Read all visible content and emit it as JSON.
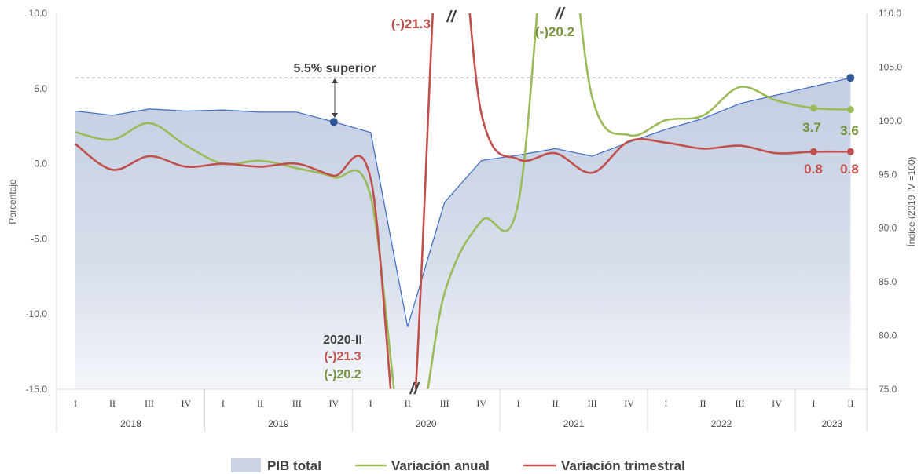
{
  "chart_data": {
    "type": "line",
    "categories": [
      "I",
      "II",
      "III",
      "IV",
      "I",
      "II",
      "III",
      "IV",
      "I",
      "II",
      "III",
      "IV",
      "I",
      "II",
      "III",
      "IV",
      "I",
      "II",
      "III",
      "IV",
      "I",
      "II"
    ],
    "years": [
      {
        "label": "2018",
        "start": 0,
        "end": 3
      },
      {
        "label": "2019",
        "start": 4,
        "end": 7
      },
      {
        "label": "2020",
        "start": 8,
        "end": 11
      },
      {
        "label": "2021",
        "start": 12,
        "end": 15
      },
      {
        "label": "2022",
        "start": 16,
        "end": 19
      },
      {
        "label": "2023",
        "start": 20,
        "end": 21
      }
    ],
    "series": [
      {
        "name": "PIB total",
        "type": "area",
        "axis": "right",
        "color": "#cdd5e4",
        "line_color": "#4472c4",
        "values": [
          100.9,
          100.5,
          101.1,
          100.9,
          101.0,
          100.8,
          100.8,
          99.9,
          98.9,
          80.8,
          92.4,
          96.3,
          96.8,
          97.4,
          96.7,
          98.0,
          99.2,
          100.2,
          101.6,
          102.4,
          103.2,
          104.0
        ]
      },
      {
        "name": "Variación anual",
        "type": "line",
        "axis": "left",
        "color": "#9bbb59",
        "values": [
          2.1,
          1.6,
          2.7,
          1.2,
          0.0,
          0.2,
          -0.3,
          -0.9,
          -2.2,
          -20.2,
          -8.6,
          -3.8,
          -2.6,
          20.2,
          4.4,
          1.9,
          2.9,
          3.2,
          5.1,
          4.2,
          3.7,
          3.6
        ]
      },
      {
        "name": "Variación trimestral",
        "type": "line",
        "axis": "left",
        "color": "#c0504d",
        "values": [
          1.3,
          -0.4,
          0.5,
          -0.2,
          0.0,
          -0.2,
          0.0,
          -0.8,
          -1.0,
          -21.3,
          21.3,
          3.3,
          0.3,
          0.7,
          -0.6,
          1.5,
          1.4,
          1.0,
          1.2,
          0.7,
          0.8,
          0.8
        ]
      }
    ],
    "left_axis": {
      "title": "Porcentaje",
      "min": -15,
      "max": 10,
      "ticks": [
        "10.0",
        "5.0",
        "0.0",
        "-5.0",
        "-10.0",
        "-15.0"
      ]
    },
    "right_axis": {
      "title": "Índice (2019 IV =100)",
      "min": 75,
      "max": 110,
      "ticks": [
        "110.0",
        "105.0",
        "100.0",
        "95.0",
        "90.0",
        "85.0",
        "80.0",
        "75.0"
      ]
    },
    "reference_line": {
      "value": 104.0,
      "axis": "right",
      "style": "dashed"
    },
    "grid": false,
    "legend_position": "bottom",
    "annotations": {
      "superior": "5.5% superior",
      "q2020_title": "2020-II",
      "q2020_red": "(-)21.3",
      "q2020_green": "(-)20.2",
      "top_red": "(-)21.3",
      "top_green": "(-)20.2",
      "last_green_1": "3.7",
      "last_green_2": "3.6",
      "last_red_1": "0.8",
      "last_red_2": "0.8",
      "break_mark": "//"
    }
  }
}
